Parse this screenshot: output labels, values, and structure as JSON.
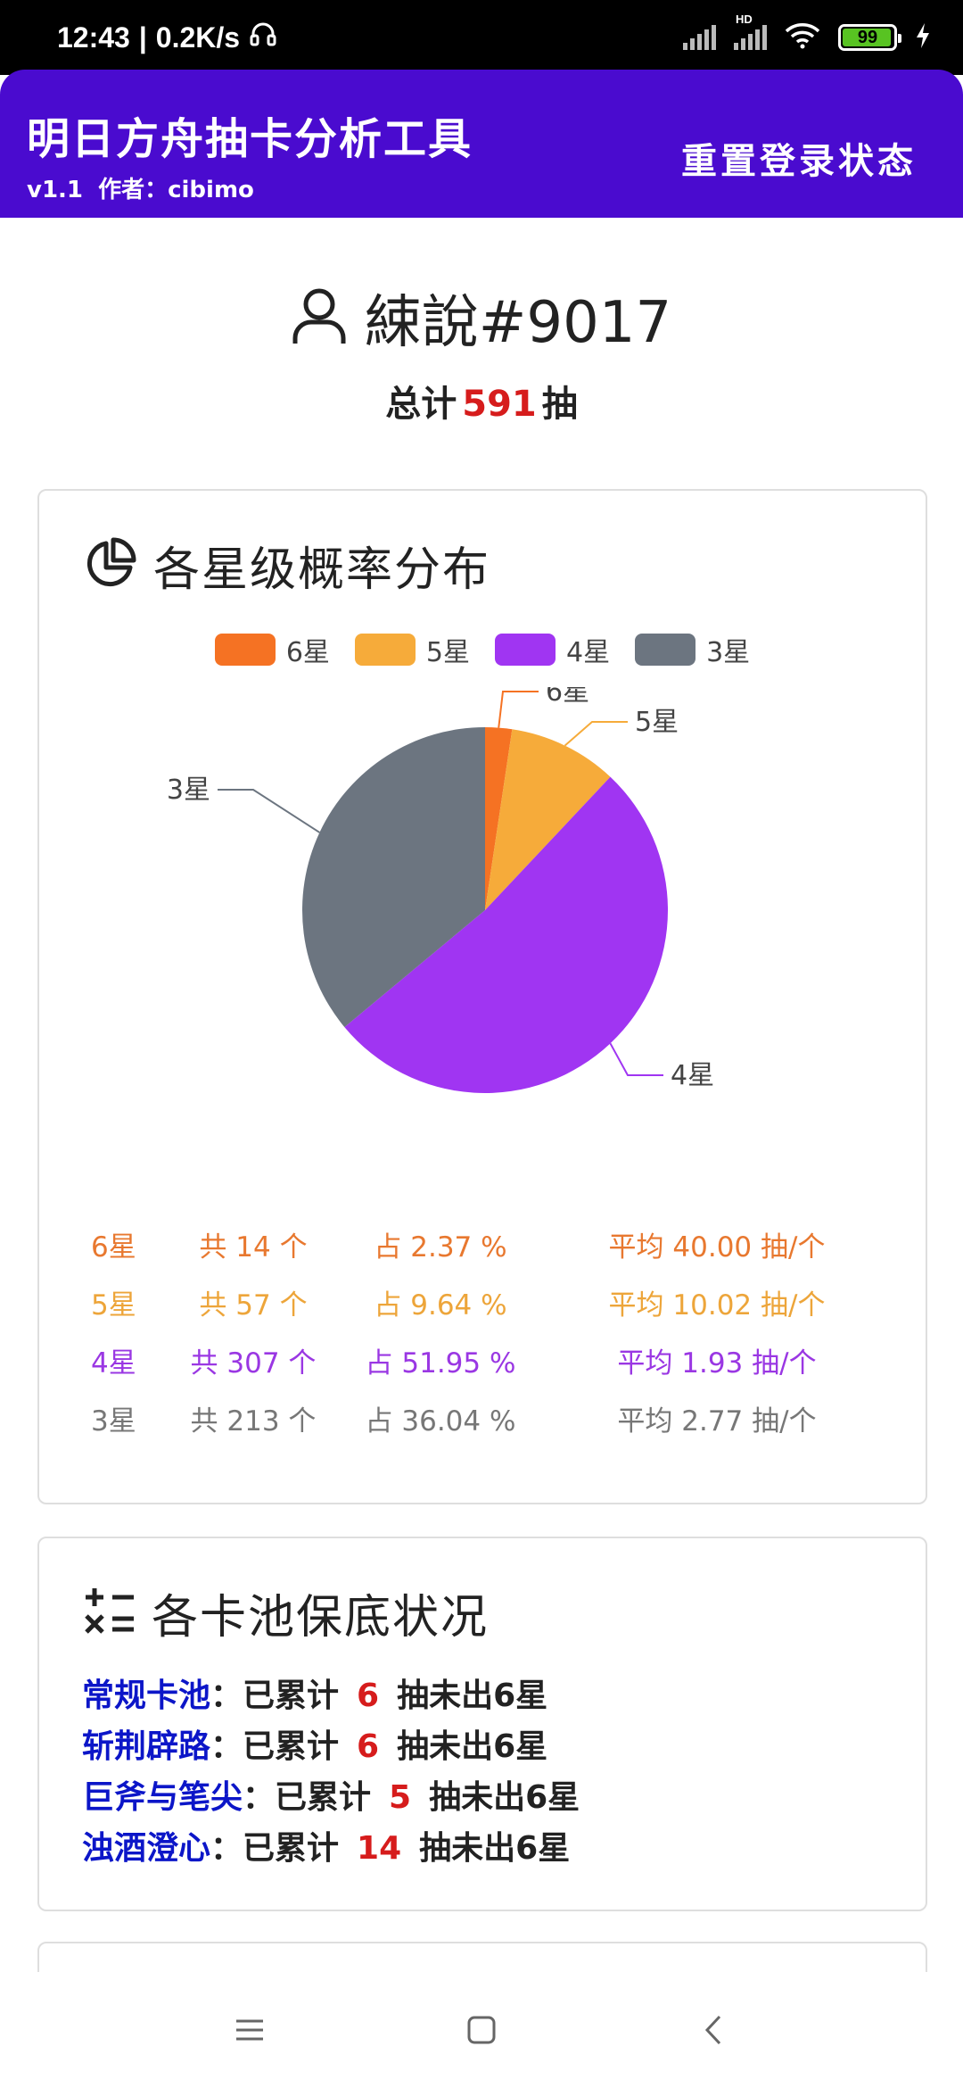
{
  "status_bar": {
    "time": "12:43",
    "separator": "|",
    "net_speed": "0.2K/s",
    "battery": "99",
    "hd_label": "HD"
  },
  "app_bar": {
    "title": "明日方舟抽卡分析工具",
    "version": "v1.1",
    "author_label": "作者：",
    "author": "cibimo",
    "reset_button": "重置登录状态"
  },
  "user": {
    "name": "綀說#9017",
    "total_prefix": "总计",
    "total_pulls": "591",
    "total_suffix": "抽"
  },
  "probability_card": {
    "title": "各星级概率分布",
    "legend": [
      {
        "label": "6星",
        "color": "#f57223"
      },
      {
        "label": "5星",
        "color": "#f6ab3a"
      },
      {
        "label": "4星",
        "color": "#a035f2"
      },
      {
        "label": "3星",
        "color": "#6c7580"
      }
    ],
    "stats": [
      {
        "star": "6星",
        "count": "共 14 个",
        "pct": "占 2.37 %",
        "avg": "平均 40.00 抽/个",
        "color": "#e8782f"
      },
      {
        "star": "5星",
        "count": "共 57 个",
        "pct": "占 9.64 %",
        "avg": "平均 10.02 抽/个",
        "color": "#eda53a"
      },
      {
        "star": "4星",
        "count": "共 307 个",
        "pct": "占 51.95 %",
        "avg": "平均 1.93 抽/个",
        "color": "#9a37e3"
      },
      {
        "star": "3星",
        "count": "共 213 个",
        "pct": "占 36.04 %",
        "avg": "平均 2.77 抽/个",
        "color": "#777777"
      }
    ]
  },
  "chart_data": {
    "type": "pie",
    "title": "各星级概率分布",
    "categories": [
      "6星",
      "5星",
      "4星",
      "3星"
    ],
    "values": [
      14,
      57,
      307,
      213
    ],
    "colors": [
      "#f57223",
      "#f6ab3a",
      "#a035f2",
      "#6c7580"
    ],
    "legend_position": "top"
  },
  "pity_card": {
    "title": "各卡池保底状况",
    "pools": [
      {
        "name": "常规卡池",
        "mid": "：已累计",
        "count": "6",
        "end": "抽未出6星"
      },
      {
        "name": "斩荆辟路",
        "mid": "：已累计",
        "count": "6",
        "end": "抽未出6星"
      },
      {
        "name": "巨斧与笔尖",
        "mid": "：已累计",
        "count": "5",
        "end": "抽未出6星"
      },
      {
        "name": "浊酒澄心",
        "mid": "：已累计",
        "count": "14",
        "end": "抽未出6星"
      }
    ]
  }
}
